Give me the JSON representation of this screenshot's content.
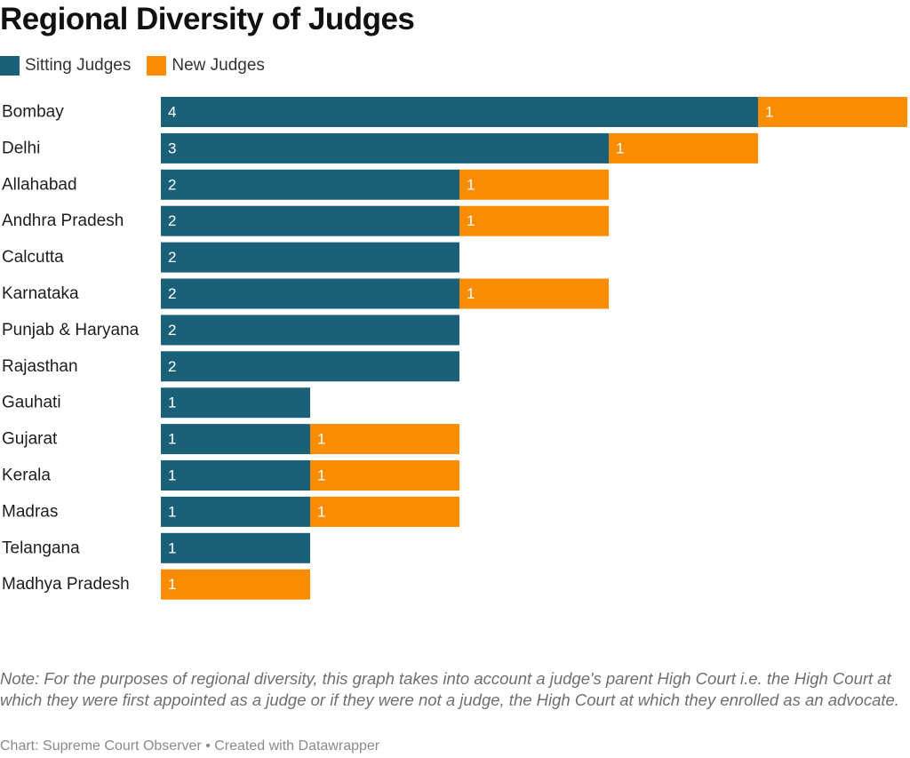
{
  "chart_data": {
    "type": "bar",
    "orientation": "horizontal",
    "stacked": true,
    "title": "Regional Diversity of Judges",
    "categories": [
      "Bombay",
      "Delhi",
      "Allahabad",
      "Andhra Pradesh",
      "Calcutta",
      "Karnataka",
      "Punjab & Haryana",
      "Rajasthan",
      "Gauhati",
      "Gujarat",
      "Kerala",
      "Madras",
      "Telangana",
      "Madhya Pradesh"
    ],
    "series": [
      {
        "name": "Sitting Judges",
        "color": "#1a6079",
        "values": [
          4,
          3,
          2,
          2,
          2,
          2,
          2,
          2,
          1,
          1,
          1,
          1,
          1,
          0
        ]
      },
      {
        "name": "New Judges",
        "color": "#fa8c00",
        "values": [
          1,
          1,
          1,
          1,
          0,
          1,
          0,
          0,
          0,
          1,
          1,
          1,
          0,
          1
        ]
      }
    ],
    "xlim": [
      0,
      5
    ],
    "legend_position": "top-left",
    "grid": false
  },
  "note": "Note: For the purposes of regional diversity, this graph takes into account a judge's parent High Court i.e. the High Court at which they were first appointed as a judge or if they were not a judge, the High Court at which they enrolled as an advocate.",
  "credit": "Chart: Supreme Court Observer • Created with Datawrapper"
}
